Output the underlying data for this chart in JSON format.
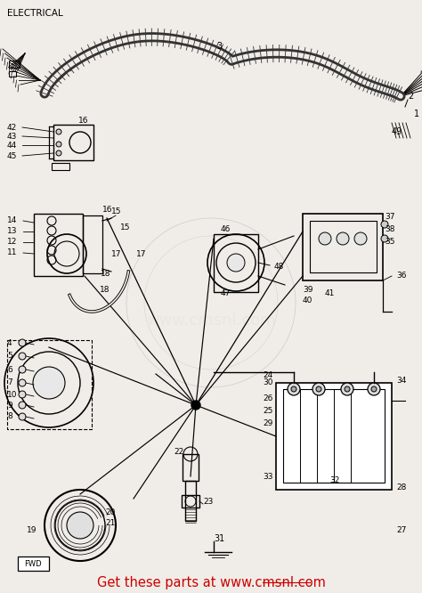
{
  "bg_color": "#f5f5f0",
  "fig_width": 4.74,
  "fig_height": 6.66,
  "dpi": 100,
  "title": "ELECTRICAL",
  "footer": "Get these parts at www.cmsnl.com",
  "footer_color": "#cc0000",
  "footer_fontsize": 10.5,
  "watermark": "www.cmsnl.com",
  "watermark_alpha": 0.18,
  "label_fs": 6.5
}
